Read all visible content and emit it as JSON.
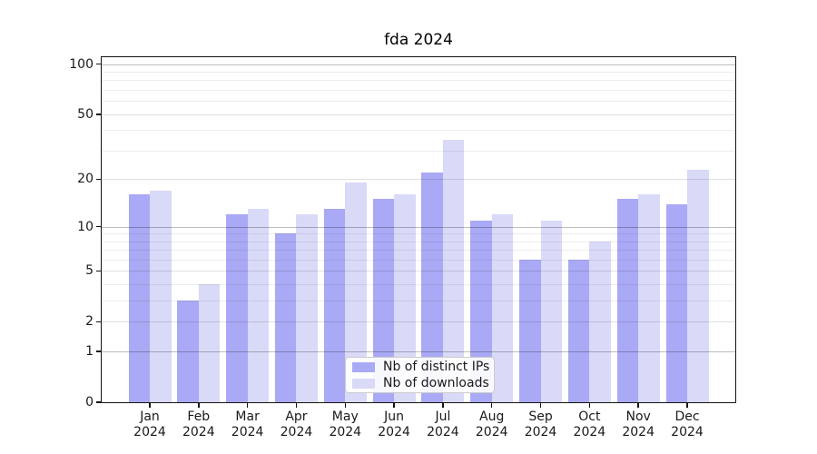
{
  "chart_data": {
    "type": "bar",
    "title": "fda 2024",
    "categories": [
      "Jan 2024",
      "Feb 2024",
      "Mar 2024",
      "Apr 2024",
      "May 2024",
      "Jun 2024",
      "Jul 2024",
      "Aug 2024",
      "Sep 2024",
      "Oct 2024",
      "Nov 2024",
      "Dec 2024"
    ],
    "series": [
      {
        "name": "Nb of distinct IPs",
        "color": "#a9a9f5",
        "values": [
          16,
          3,
          12,
          9,
          13,
          15,
          22,
          11,
          6,
          6,
          15,
          14
        ]
      },
      {
        "name": "Nb of downloads",
        "color": "#d9d9f8",
        "values": [
          17,
          4,
          13,
          12,
          19,
          16,
          35,
          12,
          11,
          8,
          16,
          23
        ]
      }
    ],
    "yscale": "log1p",
    "ylim": [
      0,
      110
    ],
    "yticks": [
      0,
      1,
      2,
      5,
      10,
      20,
      50,
      100
    ],
    "ygrid_minor": [
      3,
      4,
      6,
      7,
      8,
      9,
      30,
      40,
      60,
      70,
      80,
      90
    ],
    "grid": true,
    "legend_position": "lower center",
    "background_color": "#ffffff"
  }
}
